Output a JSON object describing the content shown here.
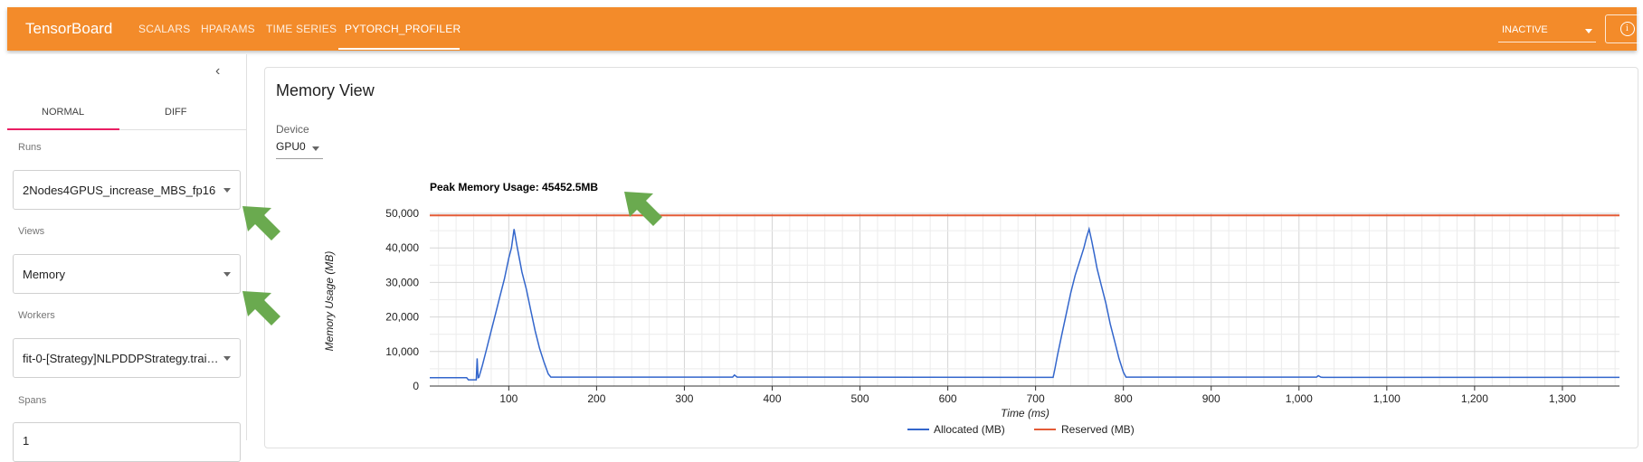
{
  "app": {
    "brand": "TensorBoard",
    "nav_tabs": [
      "SCALARS",
      "HPARAMS",
      "TIME SERIES",
      "PYTORCH_PROFILER"
    ],
    "active_tab": "PYTORCH_PROFILER",
    "status": "INACTIVE",
    "accent_color": "#f38b2a"
  },
  "sidebar": {
    "tabs": [
      "NORMAL",
      "DIFF"
    ],
    "active_tab": "NORMAL",
    "runs_label": "Runs",
    "runs_value": "2Nodes4GPUS_increase_MBS_fp16",
    "views_label": "Views",
    "views_value": "Memory",
    "workers_label": "Workers",
    "workers_value": "fit-0-[Strategy]NLPDDPStrategy.trai…",
    "spans_label": "Spans",
    "spans_value": "1"
  },
  "main": {
    "title": "Memory View",
    "device_label": "Device",
    "device_value": "GPU0"
  },
  "chart_data": {
    "type": "line",
    "title": "Peak Memory Usage: 45452.5MB",
    "xlabel": "Time (ms)",
    "ylabel": "Memory Usage (MB)",
    "xlim": [
      10,
      1365
    ],
    "ylim": [
      0,
      50000
    ],
    "x_ticks": [
      "100",
      "200",
      "300",
      "400",
      "500",
      "600",
      "700",
      "800",
      "900",
      "1,000",
      "1,100",
      "1,200",
      "1,300"
    ],
    "y_ticks": [
      "0",
      "10,000",
      "20,000",
      "30,000",
      "40,000",
      "50,000"
    ],
    "grid": true,
    "legend_position": "bottom",
    "series": [
      {
        "name": "Allocated (MB)",
        "color": "#3366cc",
        "x": [
          10,
          52,
          54,
          63,
          64,
          65,
          66,
          70,
          75,
          80,
          85,
          90,
          95,
          100,
          103,
          106,
          109,
          112,
          115,
          120,
          125,
          130,
          135,
          140,
          145,
          148,
          150,
          355,
          357,
          360,
          362,
          720,
          722,
          725,
          730,
          735,
          740,
          745,
          750,
          755,
          758,
          761,
          764,
          767,
          770,
          775,
          780,
          785,
          790,
          795,
          800,
          803,
          1020,
          1022,
          1025,
          1027,
          1365
        ],
        "y": [
          2400,
          2400,
          1800,
          1800,
          8000,
          2400,
          2500,
          6000,
          11000,
          16000,
          21000,
          26000,
          31000,
          37000,
          40000,
          45452,
          41000,
          37000,
          33000,
          28000,
          22000,
          16000,
          11000,
          7000,
          3500,
          2600,
          2600,
          2600,
          3200,
          2600,
          2600,
          2500,
          5000,
          9000,
          15000,
          21000,
          27000,
          32000,
          36000,
          40000,
          43000,
          45452,
          42000,
          38000,
          34000,
          29000,
          24000,
          18000,
          13000,
          8000,
          4000,
          2600,
          2600,
          3000,
          2600,
          2500,
          2500
        ]
      },
      {
        "name": "Reserved (MB)",
        "color": "#e45b36",
        "x": [
          10,
          1365
        ],
        "y": [
          49400,
          49400
        ]
      }
    ]
  }
}
